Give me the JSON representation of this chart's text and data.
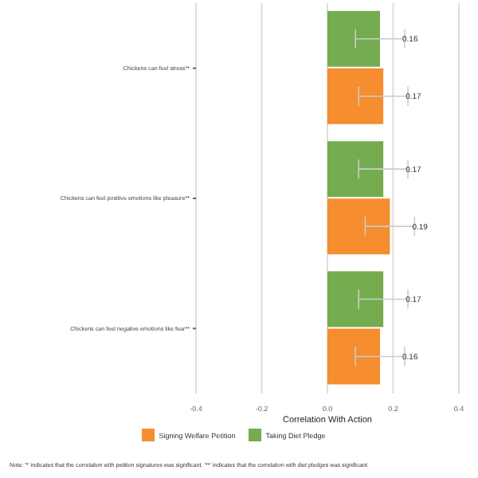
{
  "chart_data": {
    "type": "bar",
    "orientation": "horizontal",
    "categories": [
      "Chickens can feel stress**",
      "Chickens can feel positive emotions like pleasure**",
      "Chickens can feel negative emotions like fear**"
    ],
    "series": [
      {
        "name": "Taking Diet Pledge",
        "color": "#75ac4f",
        "values": [
          0.16,
          0.17,
          0.17
        ],
        "errors": [
          0.075,
          0.075,
          0.075
        ]
      },
      {
        "name": "Signing Welfare Petition",
        "color": "#f68d2e",
        "values": [
          0.17,
          0.19,
          0.16
        ],
        "errors": [
          0.075,
          0.075,
          0.075
        ]
      }
    ],
    "xlabel": "Correlation With Action",
    "xlim": [
      -0.4,
      0.4
    ],
    "xticks": [
      -0.4,
      -0.2,
      {
        "value": 0,
        "label": "0.0"
      },
      0.2,
      0.4
    ],
    "grid": "x",
    "legend": "bottom",
    "data_labels": true,
    "annotations": [
      "Note: '*' indicates that the correlation with petition signatures was significant. '**' indicates that the correlation with diet pledges was significant."
    ]
  }
}
